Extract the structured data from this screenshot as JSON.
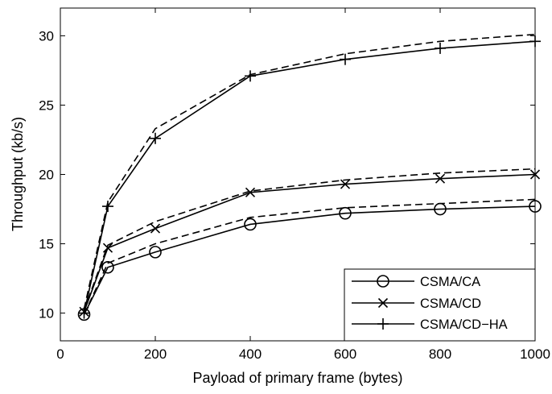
{
  "chart_data": {
    "type": "line",
    "title": "",
    "xlabel": "Payload of primary frame (bytes)",
    "ylabel": "Throughput (kb/s)",
    "xlim": [
      0,
      1000
    ],
    "ylim": [
      8,
      32
    ],
    "xticks": [
      0,
      200,
      400,
      600,
      800,
      1000
    ],
    "yticks": [
      10,
      15,
      20,
      25,
      30
    ],
    "grid": false,
    "legend_position": "lower-right",
    "x": [
      50,
      100,
      200,
      400,
      600,
      800,
      1000
    ],
    "series": [
      {
        "name": "CSMA/CA",
        "marker": "circle",
        "values": [
          9.9,
          13.3,
          14.4,
          16.4,
          17.2,
          17.5,
          17.7
        ],
        "dashed_values": [
          9.9,
          13.6,
          15.0,
          16.9,
          17.6,
          17.9,
          18.2
        ]
      },
      {
        "name": "CSMA/CD",
        "marker": "x",
        "values": [
          10.1,
          14.7,
          16.1,
          18.7,
          19.3,
          19.7,
          20.0
        ],
        "dashed_values": [
          10.2,
          14.9,
          16.6,
          18.8,
          19.6,
          20.1,
          20.4
        ]
      },
      {
        "name": "CSMA/CD−HA",
        "marker": "plus",
        "values": [
          10.0,
          17.7,
          22.6,
          27.1,
          28.3,
          29.1,
          29.6
        ],
        "dashed_values": [
          10.3,
          18.0,
          23.3,
          27.2,
          28.7,
          29.6,
          30.1
        ]
      }
    ],
    "colors": {
      "line": "#000000",
      "background": "#ffffff"
    }
  }
}
